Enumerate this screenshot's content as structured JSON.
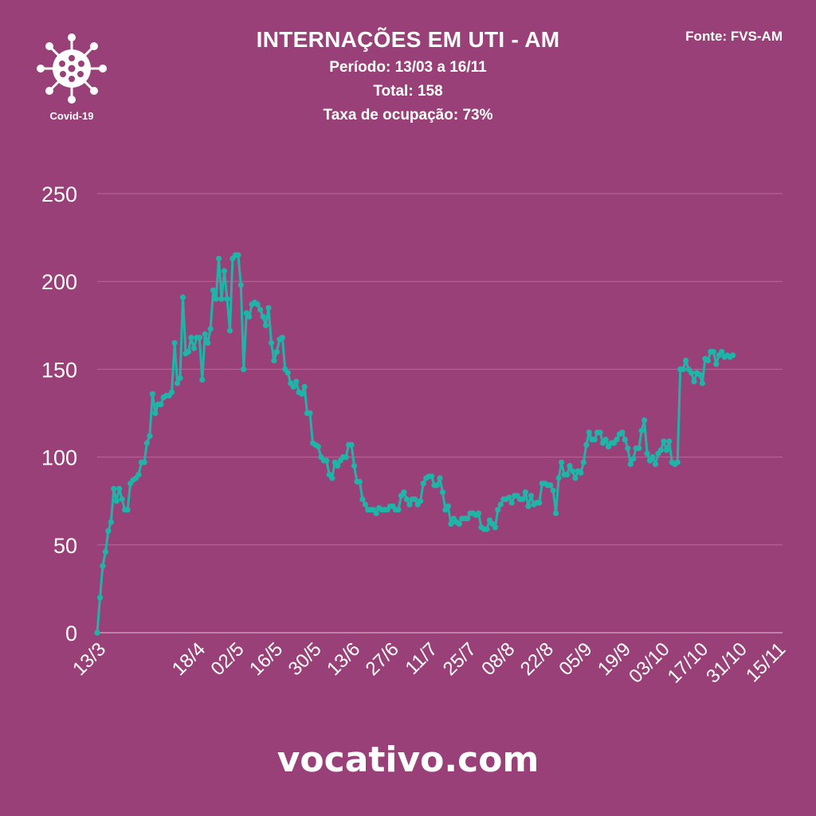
{
  "header": {
    "title": "INTERNAÇÕES EM UTI - AM",
    "period": "Período: 13/03 a 16/11",
    "total": "Total: 158",
    "occupancy": "Taxa de ocupação: 73%"
  },
  "source": "Fonte: FVS-AM",
  "logo": {
    "label": "Covid-19",
    "icon": "virus-icon"
  },
  "footer": {
    "text": "vocativo.com"
  },
  "colors": {
    "background": "#9a4079",
    "line": "#1fb4a8",
    "grid": "#b26b98",
    "text": "#ffffff"
  },
  "chart_data": {
    "type": "line",
    "title": "INTERNAÇÕES EM UTI - AM",
    "ylim": [
      0,
      250
    ],
    "yticks": [
      0,
      50,
      100,
      150,
      200,
      250
    ],
    "grid": true,
    "xlim": [
      0,
      248
    ],
    "xticks": [
      {
        "x": 0,
        "label": "13/3"
      },
      {
        "x": 36,
        "label": "18/4"
      },
      {
        "x": 50,
        "label": "02/5"
      },
      {
        "x": 64,
        "label": "16/5"
      },
      {
        "x": 78,
        "label": "30/5"
      },
      {
        "x": 92,
        "label": "13/6"
      },
      {
        "x": 106,
        "label": "27/6"
      },
      {
        "x": 120,
        "label": "11/7"
      },
      {
        "x": 134,
        "label": "25/7"
      },
      {
        "x": 148,
        "label": "08/8"
      },
      {
        "x": 162,
        "label": "22/8"
      },
      {
        "x": 176,
        "label": "05/9"
      },
      {
        "x": 190,
        "label": "19/9"
      },
      {
        "x": 204,
        "label": "03/10"
      },
      {
        "x": 218,
        "label": "17/10"
      },
      {
        "x": 232,
        "label": "31/10"
      },
      {
        "x": 246,
        "label": "15/11"
      }
    ],
    "series": [
      {
        "points": [
          [
            0,
            0
          ],
          [
            1,
            20
          ],
          [
            2,
            38
          ],
          [
            3,
            46
          ],
          [
            4,
            58
          ],
          [
            5,
            63
          ],
          [
            6,
            82
          ],
          [
            7,
            75
          ],
          [
            8,
            82
          ],
          [
            9,
            76
          ],
          [
            10,
            70
          ],
          [
            11,
            70
          ],
          [
            12,
            85
          ],
          [
            13,
            87
          ],
          [
            14,
            88
          ],
          [
            15,
            90
          ],
          [
            16,
            97
          ],
          [
            17,
            97
          ],
          [
            18,
            108
          ],
          [
            19,
            112
          ],
          [
            20,
            136
          ],
          [
            21,
            125
          ],
          [
            22,
            130
          ],
          [
            23,
            130
          ],
          [
            24,
            134
          ],
          [
            25,
            135
          ],
          [
            26,
            135
          ],
          [
            27,
            137
          ],
          [
            28,
            165
          ],
          [
            29,
            142
          ],
          [
            30,
            145
          ],
          [
            31,
            191
          ],
          [
            32,
            159
          ],
          [
            33,
            160
          ],
          [
            34,
            168
          ],
          [
            35,
            162
          ],
          [
            36,
            168
          ],
          [
            37,
            168
          ],
          [
            38,
            144
          ],
          [
            39,
            170
          ],
          [
            40,
            165
          ],
          [
            41,
            173
          ],
          [
            42,
            195
          ],
          [
            43,
            190
          ],
          [
            44,
            213
          ],
          [
            45,
            190
          ],
          [
            46,
            206
          ],
          [
            47,
            190
          ],
          [
            48,
            172
          ],
          [
            49,
            213
          ],
          [
            50,
            215
          ],
          [
            51,
            215
          ],
          [
            52,
            198
          ],
          [
            53,
            150
          ],
          [
            54,
            182
          ],
          [
            55,
            180
          ],
          [
            56,
            187
          ],
          [
            57,
            188
          ],
          [
            58,
            187
          ],
          [
            59,
            184
          ],
          [
            60,
            180
          ],
          [
            61,
            175
          ],
          [
            62,
            185
          ],
          [
            63,
            165
          ],
          [
            64,
            155
          ],
          [
            65,
            160
          ],
          [
            66,
            167
          ],
          [
            67,
            168
          ],
          [
            68,
            150
          ],
          [
            69,
            148
          ],
          [
            70,
            142
          ],
          [
            71,
            140
          ],
          [
            72,
            143
          ],
          [
            73,
            137
          ],
          [
            74,
            136
          ],
          [
            75,
            140
          ],
          [
            76,
            125
          ],
          [
            77,
            125
          ],
          [
            78,
            108
          ],
          [
            79,
            107
          ],
          [
            80,
            106
          ],
          [
            81,
            100
          ],
          [
            82,
            98
          ],
          [
            83,
            98
          ],
          [
            84,
            90
          ],
          [
            85,
            88
          ],
          [
            86,
            97
          ],
          [
            87,
            95
          ],
          [
            88,
            98
          ],
          [
            89,
            100
          ],
          [
            90,
            100
          ],
          [
            91,
            107
          ],
          [
            92,
            107
          ],
          [
            93,
            95
          ],
          [
            94,
            86
          ],
          [
            95,
            86
          ],
          [
            96,
            76
          ],
          [
            97,
            73
          ],
          [
            98,
            70
          ],
          [
            99,
            70
          ],
          [
            100,
            70
          ],
          [
            101,
            68
          ],
          [
            102,
            71
          ],
          [
            103,
            70
          ],
          [
            104,
            70
          ],
          [
            105,
            70
          ],
          [
            106,
            72
          ],
          [
            107,
            72
          ],
          [
            108,
            70
          ],
          [
            109,
            70
          ],
          [
            110,
            78
          ],
          [
            111,
            80
          ],
          [
            112,
            76
          ],
          [
            113,
            73
          ],
          [
            114,
            76
          ],
          [
            115,
            76
          ],
          [
            116,
            73
          ],
          [
            117,
            75
          ],
          [
            118,
            85
          ],
          [
            119,
            88
          ],
          [
            120,
            89
          ],
          [
            121,
            89
          ],
          [
            122,
            84
          ],
          [
            123,
            84
          ],
          [
            124,
            88
          ],
          [
            125,
            80
          ],
          [
            126,
            70
          ],
          [
            127,
            72
          ],
          [
            128,
            62
          ],
          [
            129,
            65
          ],
          [
            130,
            63
          ],
          [
            131,
            62
          ],
          [
            132,
            65
          ],
          [
            133,
            65
          ],
          [
            134,
            65
          ],
          [
            135,
            68
          ],
          [
            136,
            68
          ],
          [
            137,
            67
          ],
          [
            138,
            68
          ],
          [
            139,
            60
          ],
          [
            140,
            59
          ],
          [
            141,
            59
          ],
          [
            142,
            64
          ],
          [
            143,
            62
          ],
          [
            144,
            60
          ],
          [
            145,
            70
          ],
          [
            146,
            73
          ],
          [
            147,
            76
          ],
          [
            148,
            76
          ],
          [
            149,
            77
          ],
          [
            150,
            74
          ],
          [
            151,
            78
          ],
          [
            152,
            78
          ],
          [
            153,
            76
          ],
          [
            154,
            76
          ],
          [
            155,
            80
          ],
          [
            156,
            72
          ],
          [
            157,
            78
          ],
          [
            158,
            73
          ],
          [
            159,
            74
          ],
          [
            160,
            74
          ],
          [
            161,
            85
          ],
          [
            162,
            85
          ],
          [
            163,
            84
          ],
          [
            164,
            84
          ],
          [
            165,
            81
          ],
          [
            166,
            68
          ],
          [
            167,
            88
          ],
          [
            168,
            97
          ],
          [
            169,
            90
          ],
          [
            170,
            90
          ],
          [
            171,
            95
          ],
          [
            172,
            92
          ],
          [
            173,
            88
          ],
          [
            174,
            92
          ],
          [
            175,
            91
          ],
          [
            176,
            97
          ],
          [
            177,
            107
          ],
          [
            178,
            114
          ],
          [
            179,
            110
          ],
          [
            180,
            110
          ],
          [
            181,
            114
          ],
          [
            182,
            114
          ],
          [
            183,
            108
          ],
          [
            184,
            110
          ],
          [
            185,
            106
          ],
          [
            186,
            108
          ],
          [
            187,
            108
          ],
          [
            188,
            110
          ],
          [
            189,
            113
          ],
          [
            190,
            114
          ],
          [
            191,
            110
          ],
          [
            192,
            105
          ],
          [
            193,
            96
          ],
          [
            194,
            99
          ],
          [
            195,
            105
          ],
          [
            196,
            105
          ],
          [
            197,
            115
          ],
          [
            198,
            121
          ],
          [
            199,
            102
          ],
          [
            200,
            98
          ],
          [
            201,
            100
          ],
          [
            202,
            96
          ],
          [
            203,
            102
          ],
          [
            204,
            104
          ],
          [
            205,
            109
          ],
          [
            206,
            104
          ],
          [
            207,
            109
          ],
          [
            208,
            97
          ],
          [
            209,
            96
          ],
          [
            210,
            97
          ],
          [
            211,
            150
          ],
          [
            212,
            150
          ],
          [
            213,
            155
          ],
          [
            214,
            150
          ],
          [
            215,
            148
          ],
          [
            216,
            143
          ],
          [
            217,
            148
          ],
          [
            218,
            147
          ],
          [
            219,
            142
          ],
          [
            220,
            156
          ],
          [
            221,
            155
          ],
          [
            222,
            160
          ],
          [
            223,
            160
          ],
          [
            224,
            153
          ],
          [
            225,
            158
          ],
          [
            226,
            160
          ],
          [
            227,
            157
          ],
          [
            228,
            158
          ],
          [
            229,
            157
          ],
          [
            230,
            158
          ]
        ]
      }
    ]
  }
}
